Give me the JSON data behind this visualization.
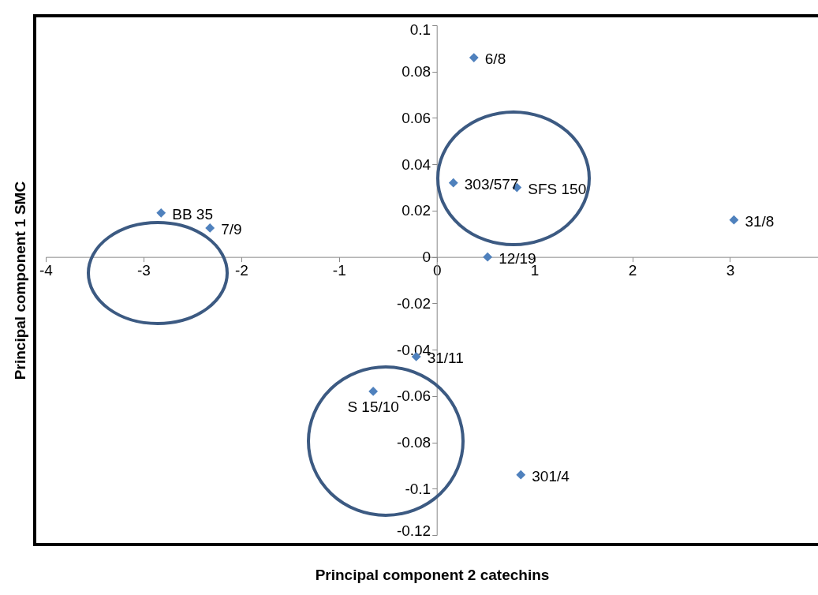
{
  "chart_data": {
    "type": "scatter",
    "xlabel": "Principal component 2 catechins",
    "ylabel": "Principal component 1 SMC",
    "marker": "diamond",
    "grid": false,
    "legend": false,
    "xlim": [
      -4,
      3.9
    ],
    "ylim": [
      -0.12,
      0.1
    ],
    "xticks": [
      -4,
      -3,
      -2,
      -1,
      0,
      1,
      2,
      3
    ],
    "yticks": [
      -0.12,
      -0.1,
      -0.08,
      -0.06,
      -0.04,
      -0.02,
      0,
      0.02,
      0.04,
      0.06,
      0.08,
      0.1
    ],
    "series": [
      {
        "color": "#4f81bd",
        "x": [
          0.38,
          0.17,
          0.82,
          0.52,
          3.04,
          -2.82,
          -2.32,
          -0.21,
          -0.65,
          0.86
        ],
        "values": [
          0.086,
          0.032,
          0.03,
          0,
          0.016,
          0.019,
          0.0125,
          -0.043,
          -0.058,
          -0.094
        ]
      }
    ],
    "annotations": [
      {
        "text": "6/8",
        "x": 0.38,
        "y": 0.086
      },
      {
        "text": "303/577",
        "x": 0.17,
        "y": 0.032
      },
      {
        "text": "SFS 150",
        "x": 0.82,
        "y": 0.03
      },
      {
        "text": "12/19",
        "x": 0.52,
        "y": 0
      },
      {
        "text": "31/8",
        "x": 3.04,
        "y": 0.016
      },
      {
        "text": "BB 35",
        "x": -2.82,
        "y": 0.019
      },
      {
        "text": "7/9",
        "x": -2.32,
        "y": 0.0125
      },
      {
        "text": "31/11",
        "x": -0.21,
        "y": -0.043
      },
      {
        "text": "S 15/10",
        "x": -0.65,
        "y": -0.058
      },
      {
        "text": "301/4",
        "x": 0.86,
        "y": -0.094
      }
    ]
  }
}
